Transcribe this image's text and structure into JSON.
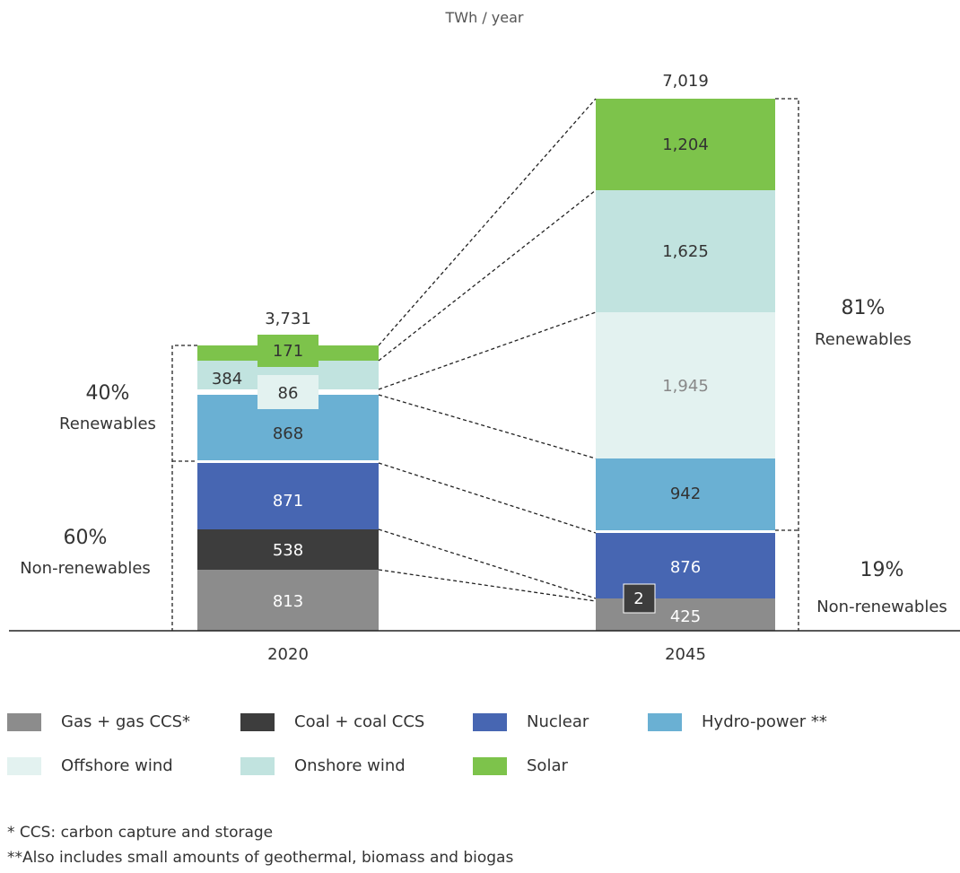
{
  "chart_data": {
    "type": "bar",
    "stacked": true,
    "unit_label": "TWh / year",
    "categories": [
      "2020",
      "2045"
    ],
    "totals": [
      "3,731",
      "7,019"
    ],
    "series": [
      {
        "name": "Gas + gas CCS*",
        "color": "#8c8c8c",
        "values": [
          813,
          425
        ]
      },
      {
        "name": "Coal + coal CCS",
        "color": "#3d3d3d",
        "values": [
          538,
          2
        ]
      },
      {
        "name": "Nuclear",
        "color": "#4766b2",
        "values": [
          871,
          876
        ]
      },
      {
        "name": "Hydro-power **",
        "color": "#6ab0d3",
        "values": [
          868,
          942
        ]
      },
      {
        "name": "Offshore wind",
        "color": "#e3f2f0",
        "values": [
          86,
          1945
        ]
      },
      {
        "name": "Onshore wind",
        "color": "#c1e3df",
        "values": [
          384,
          1625
        ]
      },
      {
        "name": "Solar",
        "color": "#7dc34b",
        "values": [
          171,
          1204
        ]
      }
    ],
    "value_labels": {
      "2020": [
        "813",
        "538",
        "871",
        "868",
        "86",
        "384",
        "171"
      ],
      "2045": [
        "425",
        "2",
        "876",
        "942",
        "1,945",
        "1,625",
        "1,204"
      ]
    },
    "share_annotations": {
      "2020": {
        "renewables_pct": "40%",
        "renewables_label": "Renewables",
        "non_renewables_pct": "60%",
        "non_renewables_label": "Non-renewables"
      },
      "2045": {
        "renewables_pct": "81%",
        "renewables_label": "Renewables",
        "non_renewables_pct": "19%",
        "non_renewables_label": "Non-renewables"
      }
    }
  },
  "footnotes": [
    "* CCS: carbon capture and storage",
    "**Also includes small amounts of geothermal, biomass and biogas"
  ]
}
